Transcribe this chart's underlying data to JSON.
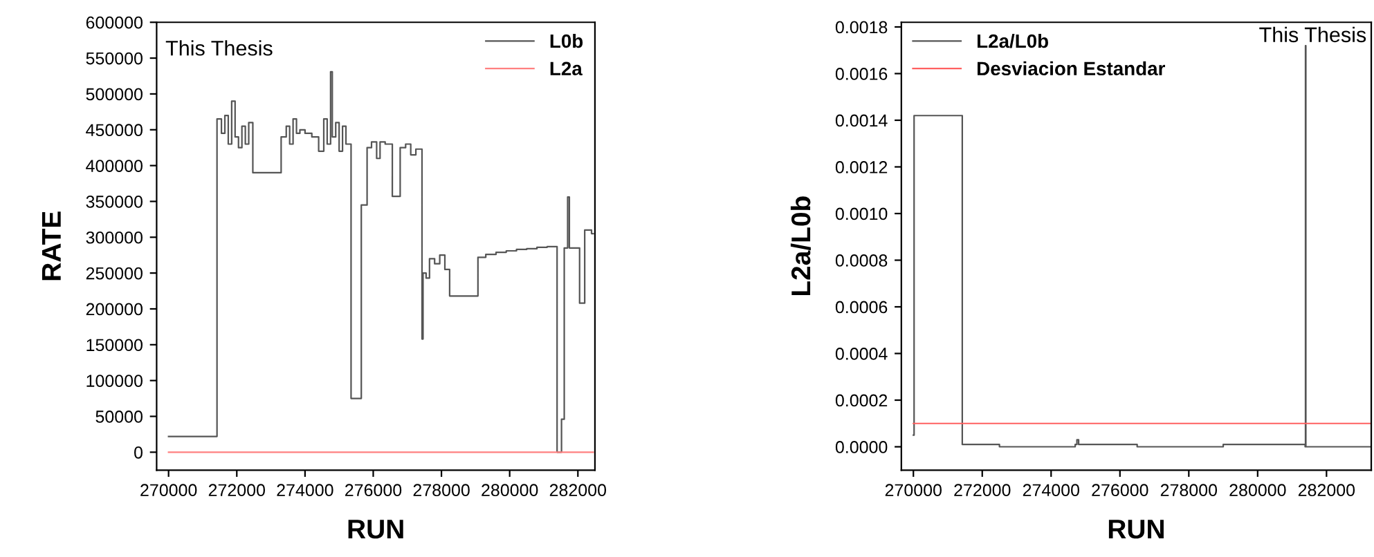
{
  "chart_data": [
    {
      "type": "step",
      "xlabel": "RUN",
      "ylabel": "RATE",
      "annotations": [
        "This Thesis"
      ],
      "legend": "top right",
      "grid": false,
      "xlim": [
        269650,
        282500
      ],
      "xticks": [
        270000,
        272000,
        274000,
        276000,
        278000,
        280000,
        282000
      ],
      "ylim": [
        -25000,
        600000
      ],
      "yticks": [
        0,
        50000,
        100000,
        150000,
        200000,
        250000,
        300000,
        350000,
        400000,
        450000,
        500000,
        550000,
        600000
      ],
      "series": [
        {
          "name": "L0b",
          "color": "#555555",
          "x": [
            270000,
            271420,
            271550,
            271650,
            271750,
            271850,
            271950,
            272050,
            272150,
            272250,
            272350,
            272470,
            273300,
            273450,
            273550,
            273650,
            273750,
            273850,
            274000,
            274200,
            274400,
            274550,
            274650,
            274750,
            274800,
            274900,
            275000,
            275100,
            275200,
            275350,
            275650,
            275820,
            275950,
            276100,
            276200,
            276350,
            276560,
            276790,
            276950,
            277100,
            277250,
            277430,
            277460,
            277550,
            277650,
            277800,
            277950,
            278100,
            278240,
            279070,
            279300,
            279600,
            279900,
            280200,
            280500,
            280800,
            281100,
            281390,
            281520,
            281600,
            281700,
            281750,
            282050,
            282200,
            282400,
            282450
          ],
          "values": [
            22000,
            465000,
            445000,
            470000,
            430000,
            490000,
            440000,
            425000,
            455000,
            430000,
            460000,
            390000,
            440000,
            455000,
            430000,
            465000,
            445000,
            450000,
            445000,
            440000,
            420000,
            465000,
            430000,
            531000,
            440000,
            460000,
            420000,
            455000,
            430000,
            75000,
            345000,
            425000,
            433000,
            410000,
            433000,
            430000,
            357000,
            425000,
            430000,
            415000,
            423000,
            158000,
            250000,
            243000,
            270000,
            263000,
            275000,
            255000,
            218000,
            272000,
            276000,
            279000,
            281000,
            283000,
            284000,
            286000,
            287000,
            0,
            46000,
            285000,
            356000,
            285000,
            208000,
            310000,
            305000,
            305000
          ]
        },
        {
          "name": "L2a",
          "color": "#ff8080",
          "x": [
            270000,
            282450
          ],
          "values": [
            0,
            0
          ]
        }
      ]
    },
    {
      "type": "step",
      "xlabel": "RUN",
      "ylabel": "L2a/L0b",
      "annotations": [
        "This Thesis"
      ],
      "legend": "top left",
      "grid": false,
      "xlim": [
        269650,
        283300
      ],
      "xticks": [
        270000,
        272000,
        274000,
        276000,
        278000,
        280000,
        282000
      ],
      "ylim": [
        -0.0001,
        0.00182
      ],
      "yticks": [
        {
          "value": 0,
          "label": "0.0000"
        },
        {
          "value": 0.0002,
          "label": "0.0002"
        },
        {
          "value": 0.0004,
          "label": "0.0004"
        },
        {
          "value": 0.0006,
          "label": "0.0006"
        },
        {
          "value": 0.0008,
          "label": "0.0008"
        },
        {
          "value": 0.001,
          "label": "0.0010"
        },
        {
          "value": 0.0012,
          "label": "0.0012"
        },
        {
          "value": 0.0014,
          "label": "0.0014"
        },
        {
          "value": 0.0016,
          "label": "0.0016"
        },
        {
          "value": 0.0018,
          "label": "0.0018"
        }
      ],
      "series": [
        {
          "name": "L2a/L0b",
          "color": "#555555",
          "x": [
            270000,
            270020,
            271420,
            272500,
            274700,
            274750,
            274800,
            276500,
            279000,
            281380,
            281390,
            281400,
            283300
          ],
          "values": [
            5e-05,
            0.00142,
            1e-05,
            0.0,
            1e-05,
            3e-05,
            1e-05,
            0.0,
            1e-05,
            0.0,
            0.00172,
            0.0,
            0.0
          ]
        },
        {
          "name": "Desviacion Estandar",
          "color": "#ff6060",
          "x": [
            270000,
            283300
          ],
          "values": [
            0.0001,
            0.0001
          ]
        }
      ]
    }
  ]
}
